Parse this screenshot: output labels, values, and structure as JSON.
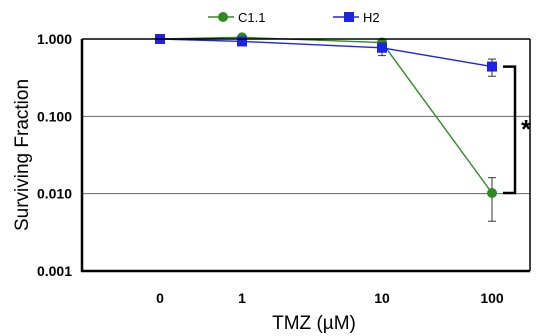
{
  "chart_data": {
    "type": "line",
    "title": "",
    "xlabel": "TMZ (µM)",
    "ylabel": "Surviving Fraction",
    "yscale": "log",
    "ylim": [
      0.001,
      1.0
    ],
    "yticks": [
      "1.000",
      "0.100",
      "0.010",
      "0.001"
    ],
    "categories": [
      "0",
      "1",
      "10",
      "100"
    ],
    "grid": "horizontal major lines",
    "legend": "top-center",
    "series": [
      {
        "name": "C1.1",
        "color": "#2e8b22",
        "marker": "circle",
        "values": [
          1.0,
          1.05,
          0.9,
          0.0102
        ],
        "error": [
          [
            0,
            0,
            0,
            0.0058
          ],
          [
            0,
            0,
            0,
            0.0059
          ]
        ]
      },
      {
        "name": "H2",
        "color": "#1f23e6",
        "marker": "square",
        "values": [
          1.0,
          0.93,
          0.77,
          0.44
        ],
        "error": [
          [
            0,
            0,
            0.16,
            0.11
          ],
          [
            0,
            0,
            0.12,
            0.11
          ]
        ]
      }
    ],
    "annotations": [
      {
        "text": "*",
        "between": "C1.1 and H2 at 100"
      }
    ]
  }
}
